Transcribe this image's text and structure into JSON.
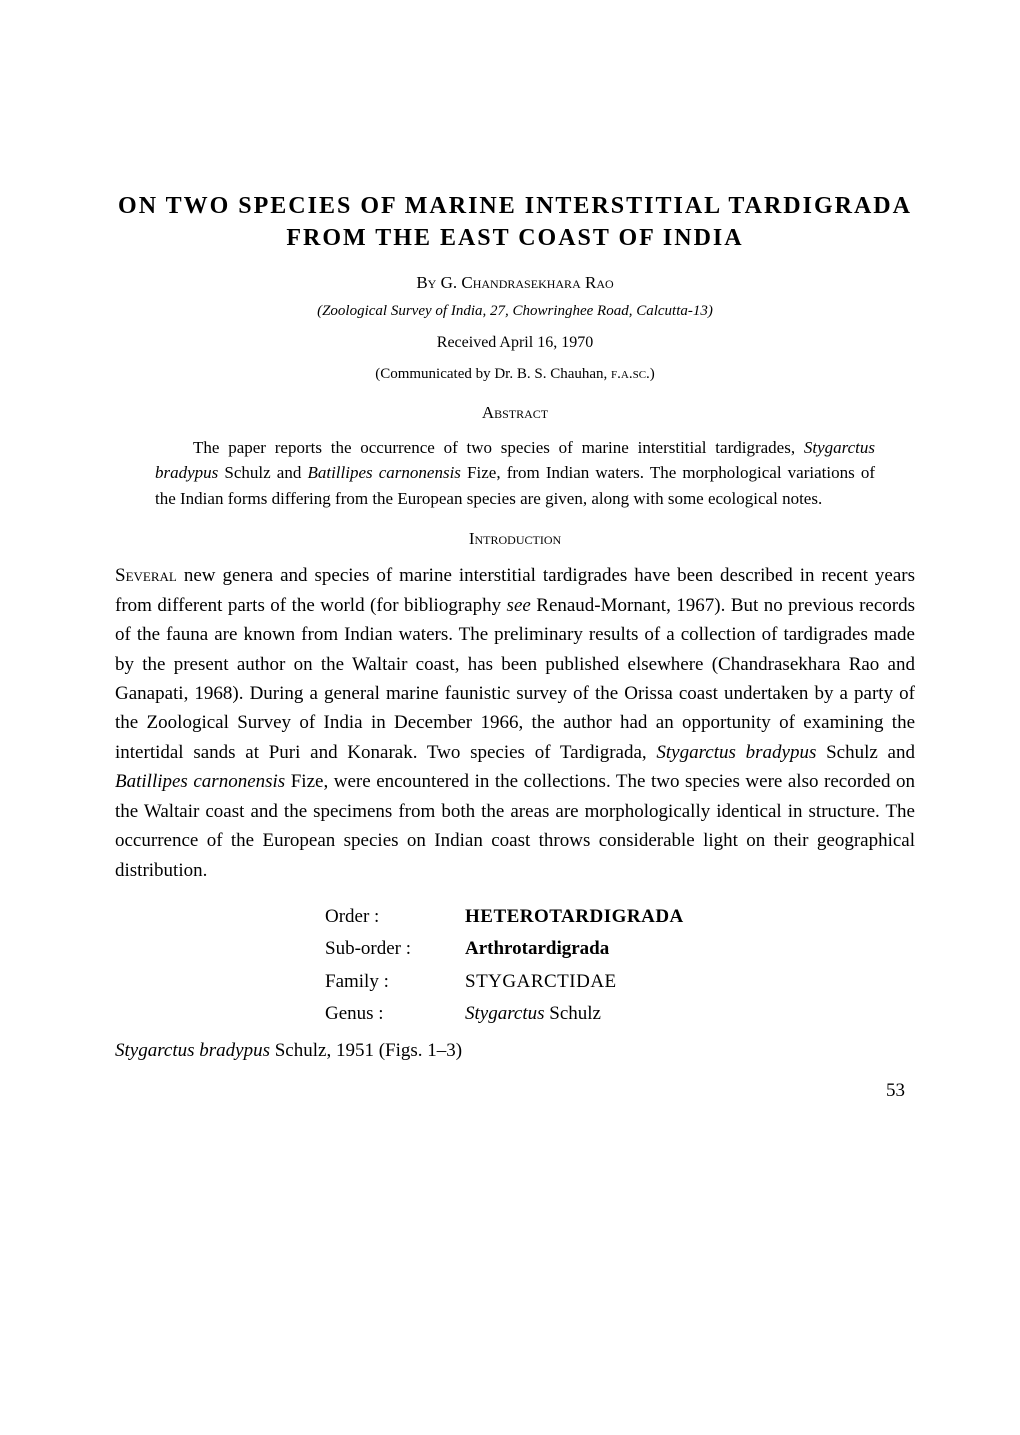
{
  "title": "ON TWO SPECIES OF MARINE INTERSTITIAL TARDIGRADA FROM THE EAST COAST OF INDIA",
  "byline": {
    "by": "By",
    "author": "G. Chandrasekhara Rao"
  },
  "affiliation": "(Zoological Survey of India, 27, Chowringhee Road, Calcutta-13)",
  "received": "Received April 16, 1970",
  "communicated_prefix": "(Communicated by Dr. B. S. Chauhan, ",
  "communicated_honorific": "f.a.sc.",
  "communicated_suffix": ")",
  "abstract": {
    "heading": "Abstract",
    "body_prefix": "The paper reports the occurrence of two species of marine interstitial tardigrades, ",
    "species1": "Stygarctus bradypus",
    "body_mid1": " Schulz and ",
    "species2": "Batillipes carnonensis",
    "body_suffix": " Fize, from Indian waters. The morphological variations of the Indian forms differing from the European species are given, along with some ecological notes."
  },
  "introduction": {
    "heading": "Introduction",
    "first_word": "Several",
    "body_part1": " new genera and species of marine interstitial tardigrades have been described in recent years from different parts of the world (for bibliography ",
    "see": "see",
    "body_part2": " Renaud-Mornant, 1967). But no previous records of the fauna are known from Indian waters. The preliminary results of a collection of tardigrades made by the present author on the Waltair coast, has been published elsewhere (Chandrasekhara Rao and Ganapati, 1968). During a general marine faunistic survey of the Orissa coast undertaken by a party of the Zoological Survey of India in December 1966, the author had an opportunity of examining the intertidal sands at Puri and Konarak. Two species of Tardigrada, ",
    "species1": "Stygarctus bradypus",
    "body_part3": " Schulz and ",
    "species2": "Batillipes carnonensis",
    "body_part4": " Fize, were encountered in the collections. The two species were also recorded on the Waltair coast and the specimens from both the areas are morphologically identical in structure. The occurrence of the European species on Indian coast throws considerable light on their geographical distribution."
  },
  "taxonomy": {
    "order_label": "Order :",
    "order_value": "HETEROTARDIGRADA",
    "suborder_label": "Sub-order :",
    "suborder_value": "Arthrotardigrada",
    "family_label": "Family :",
    "family_value": "STYGARCTIDAE",
    "genus_label": "Genus :",
    "genus_value": "Stygarctus",
    "genus_auth": " Schulz"
  },
  "species_line": {
    "binomial": "Stygarctus bradypus",
    "rest": " Schulz, 1951 (Figs. 1–3)"
  },
  "page_number": "53"
}
